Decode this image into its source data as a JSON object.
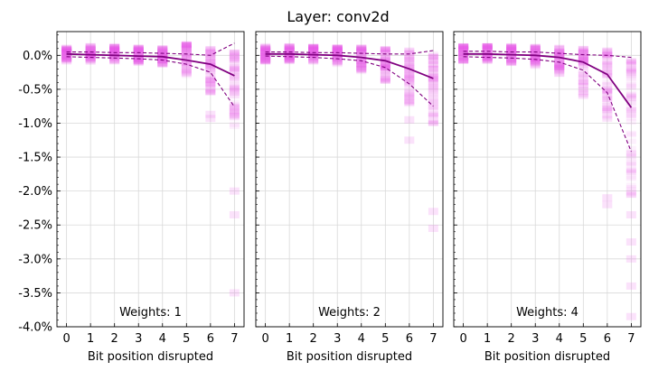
{
  "figure_title": "Layer: conv2d",
  "colors": {
    "scatter": "#e85ee8",
    "median": "#800080",
    "band": "#800080",
    "grid": "#d9d9d9",
    "axes": "#000000"
  },
  "chart_data": [
    {
      "type": "scatter",
      "annotation": "Weights: 1",
      "xlabel": "Bit position disrupted",
      "ylabel": "",
      "x_ticks": [
        0,
        1,
        2,
        3,
        4,
        5,
        6,
        7
      ],
      "xlim": [
        -0.4,
        7.4
      ],
      "ylim": [
        -4.0,
        0.35
      ],
      "y_ticks": [
        "0.0%",
        "-0.5%",
        "-1.0%",
        "-1.5%",
        "-2.0%",
        "-2.5%",
        "-3.0%",
        "-3.5%",
        "-4.0%"
      ],
      "y_tick_values": [
        0,
        -0.5,
        -1.0,
        -1.5,
        -2.0,
        -2.5,
        -3.0,
        -3.5,
        -4.0
      ],
      "grid": true,
      "median": {
        "x": [
          0,
          1,
          2,
          3,
          4,
          5,
          6,
          7
        ],
        "y": [
          0.02,
          0.01,
          0.0,
          -0.01,
          -0.02,
          -0.07,
          -0.13,
          -0.3
        ]
      },
      "upper": {
        "x": [
          0,
          1,
          2,
          3,
          4,
          5,
          6,
          7
        ],
        "y": [
          0.05,
          0.05,
          0.04,
          0.04,
          0.03,
          0.02,
          0.0,
          0.18
        ]
      },
      "lower": {
        "x": [
          0,
          1,
          2,
          3,
          4,
          5,
          6,
          7
        ],
        "y": [
          -0.02,
          -0.03,
          -0.04,
          -0.05,
          -0.07,
          -0.13,
          -0.25,
          -0.76
        ]
      },
      "spread": [
        {
          "x": 0,
          "min": -0.1,
          "max": 0.12
        },
        {
          "x": 1,
          "min": -0.1,
          "max": 0.14
        },
        {
          "x": 2,
          "min": -0.1,
          "max": 0.14
        },
        {
          "x": 3,
          "min": -0.12,
          "max": 0.12
        },
        {
          "x": 4,
          "min": -0.14,
          "max": 0.11
        },
        {
          "x": 5,
          "min": -0.32,
          "max": 0.17
        },
        {
          "x": 6,
          "min": -0.58,
          "max": 0.1
        },
        {
          "x": 7,
          "min": -1.05,
          "max": 0.05
        }
      ],
      "outliers": [
        {
          "x": 6,
          "y": -0.87
        },
        {
          "x": 6,
          "y": -0.93
        },
        {
          "x": 7,
          "y": -2.0
        },
        {
          "x": 7,
          "y": -2.35
        },
        {
          "x": 7,
          "y": -3.5
        }
      ]
    },
    {
      "type": "scatter",
      "annotation": "Weights: 2",
      "xlabel": "Bit position disrupted",
      "ylabel": "",
      "x_ticks": [
        0,
        1,
        2,
        3,
        4,
        5,
        6,
        7
      ],
      "xlim": [
        -0.4,
        7.4
      ],
      "ylim": [
        -4.0,
        0.35
      ],
      "y_ticks": [],
      "y_tick_values": [
        0,
        -0.5,
        -1.0,
        -1.5,
        -2.0,
        -2.5,
        -3.0,
        -3.5,
        -4.0
      ],
      "grid": true,
      "median": {
        "x": [
          0,
          1,
          2,
          3,
          4,
          5,
          6,
          7
        ],
        "y": [
          0.02,
          0.02,
          0.01,
          0.0,
          -0.03,
          -0.08,
          -0.2,
          -0.34
        ]
      },
      "upper": {
        "x": [
          0,
          1,
          2,
          3,
          4,
          5,
          6,
          7
        ],
        "y": [
          0.05,
          0.05,
          0.04,
          0.04,
          0.03,
          0.02,
          0.02,
          0.07
        ]
      },
      "lower": {
        "x": [
          0,
          1,
          2,
          3,
          4,
          5,
          6,
          7
        ],
        "y": [
          -0.01,
          -0.02,
          -0.03,
          -0.05,
          -0.08,
          -0.18,
          -0.42,
          -0.75
        ]
      },
      "spread": [
        {
          "x": 0,
          "min": -0.1,
          "max": 0.14
        },
        {
          "x": 1,
          "min": -0.1,
          "max": 0.14
        },
        {
          "x": 2,
          "min": -0.12,
          "max": 0.13
        },
        {
          "x": 3,
          "min": -0.14,
          "max": 0.12
        },
        {
          "x": 4,
          "min": -0.24,
          "max": 0.12
        },
        {
          "x": 5,
          "min": -0.4,
          "max": 0.1
        },
        {
          "x": 6,
          "min": -0.78,
          "max": 0.08
        },
        {
          "x": 7,
          "min": -1.05,
          "max": 0.02
        }
      ],
      "outliers": [
        {
          "x": 6,
          "y": -0.95
        },
        {
          "x": 6,
          "y": -1.25
        },
        {
          "x": 7,
          "y": -2.3
        },
        {
          "x": 7,
          "y": -2.55
        }
      ]
    },
    {
      "type": "scatter",
      "annotation": "Weights: 4",
      "xlabel": "Bit position disrupted",
      "ylabel": "",
      "x_ticks": [
        0,
        1,
        2,
        3,
        4,
        5,
        6,
        7
      ],
      "xlim": [
        -0.4,
        7.4
      ],
      "ylim": [
        -4.0,
        0.35
      ],
      "y_ticks": [],
      "y_tick_values": [
        0,
        -0.5,
        -1.0,
        -1.5,
        -2.0,
        -2.5,
        -3.0,
        -3.5,
        -4.0
      ],
      "grid": true,
      "median": {
        "x": [
          0,
          1,
          2,
          3,
          4,
          5,
          6,
          7
        ],
        "y": [
          0.02,
          0.02,
          0.01,
          0.0,
          -0.03,
          -0.1,
          -0.28,
          -0.77
        ]
      },
      "upper": {
        "x": [
          0,
          1,
          2,
          3,
          4,
          5,
          6,
          7
        ],
        "y": [
          0.06,
          0.06,
          0.05,
          0.05,
          0.03,
          0.01,
          0.0,
          -0.03
        ]
      },
      "lower": {
        "x": [
          0,
          1,
          2,
          3,
          4,
          5,
          6,
          7
        ],
        "y": [
          -0.02,
          -0.03,
          -0.04,
          -0.06,
          -0.1,
          -0.22,
          -0.55,
          -1.42
        ]
      },
      "spread": [
        {
          "x": 0,
          "min": -0.1,
          "max": 0.14
        },
        {
          "x": 1,
          "min": -0.1,
          "max": 0.14
        },
        {
          "x": 2,
          "min": -0.12,
          "max": 0.14
        },
        {
          "x": 3,
          "min": -0.16,
          "max": 0.13
        },
        {
          "x": 4,
          "min": -0.28,
          "max": 0.12
        },
        {
          "x": 5,
          "min": -0.62,
          "max": 0.1
        },
        {
          "x": 6,
          "min": -0.95,
          "max": 0.08
        },
        {
          "x": 7,
          "min": -2.15,
          "max": -0.08
        }
      ],
      "outliers": [
        {
          "x": 6,
          "y": -2.1
        },
        {
          "x": 6,
          "y": -2.2
        },
        {
          "x": 7,
          "y": -2.35
        },
        {
          "x": 7,
          "y": -2.75
        },
        {
          "x": 7,
          "y": -3.0
        },
        {
          "x": 7,
          "y": -3.4
        },
        {
          "x": 7,
          "y": -3.85
        }
      ]
    }
  ]
}
